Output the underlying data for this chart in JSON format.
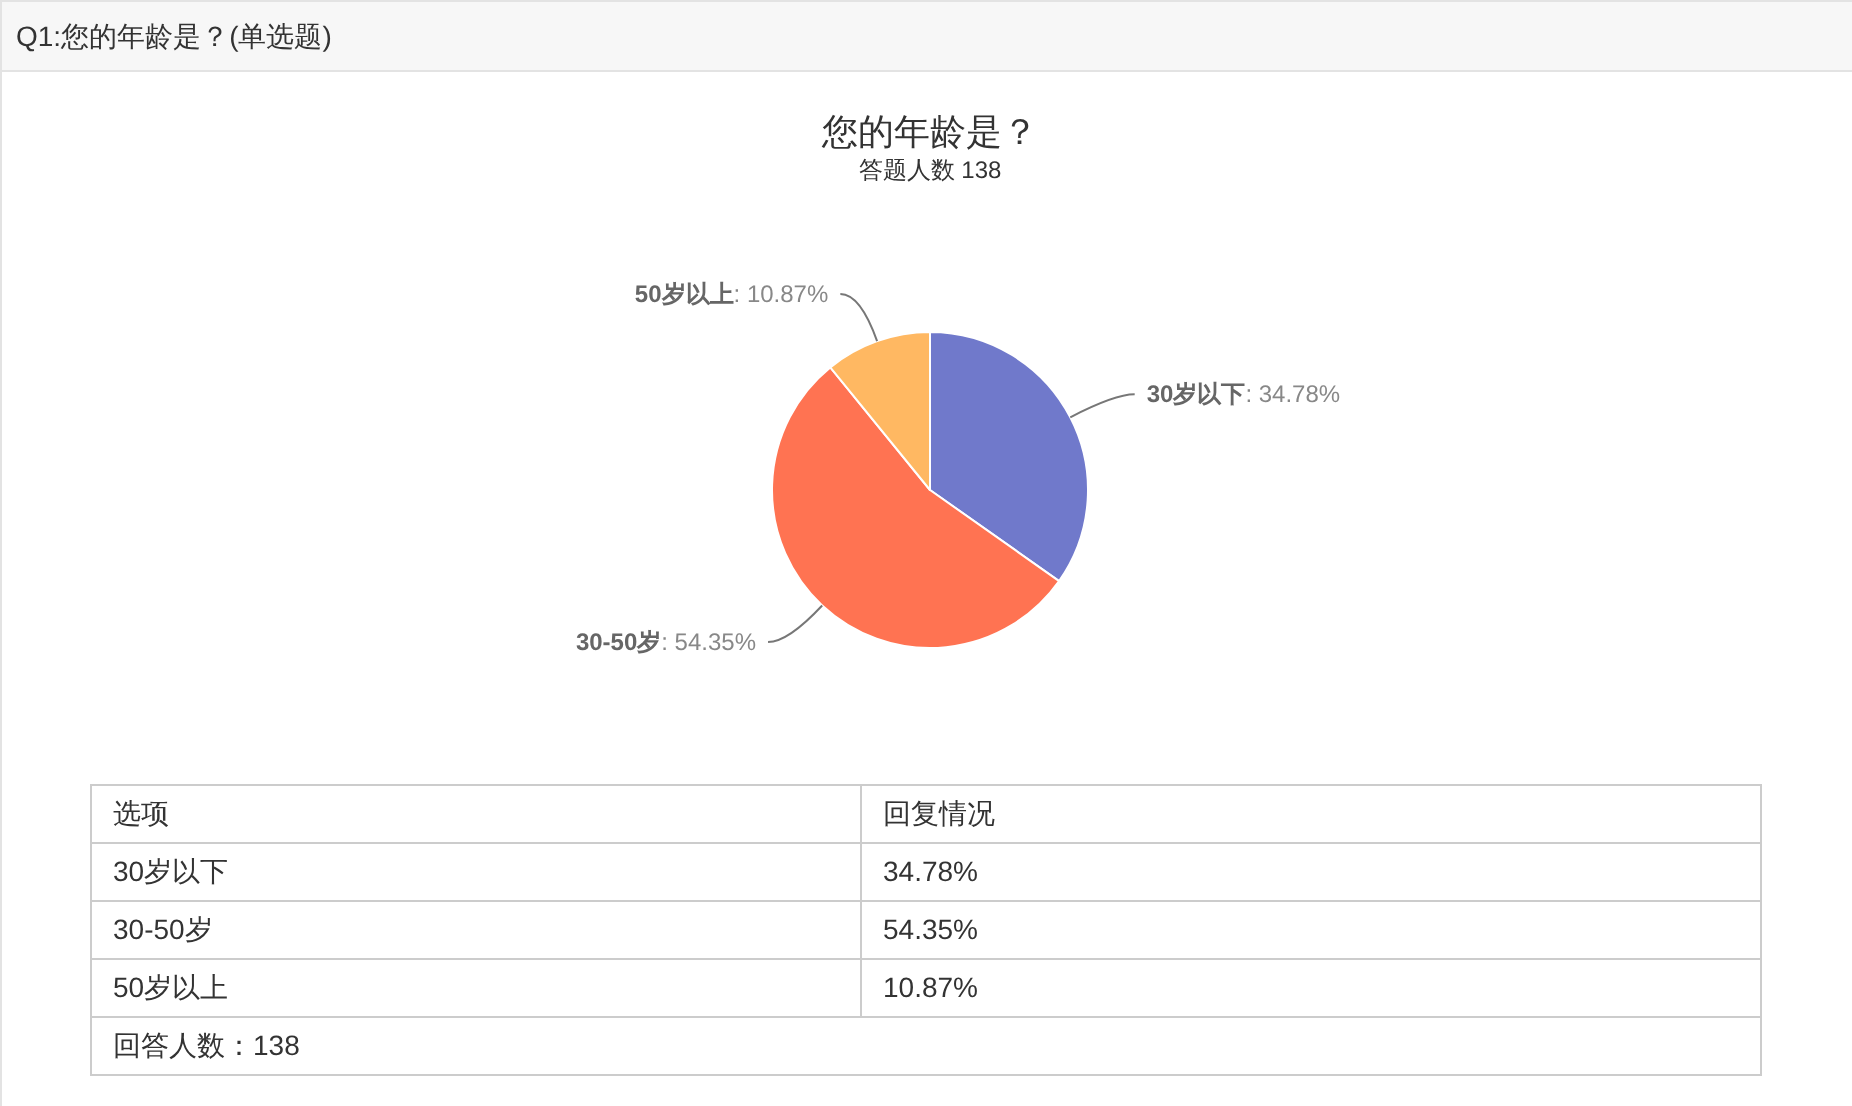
{
  "chart_data": [
    {
      "type": "pie",
      "title": "您的年龄是？",
      "subtitle": "答题人数 138",
      "categories": [
        "30岁以下",
        "30-50岁",
        "50岁以上"
      ],
      "values": [
        34.78,
        54.35,
        10.87
      ],
      "value_labels": [
        ": 34.78%",
        ": 54.35%",
        ": 10.87%"
      ],
      "colors": [
        "#7079cb",
        "#ff7352",
        "#ffb862"
      ],
      "annotations": [
        "Q1:您的年龄是？(单选题)"
      ]
    },
    {
      "type": "other",
      "annotations": [
        "选项",
        "回复情况",
        "30岁以下",
        "34.78%",
        "30-50岁",
        "54.35%",
        "50岁以上",
        "10.87%",
        "回答人数：138"
      ]
    }
  ]
}
